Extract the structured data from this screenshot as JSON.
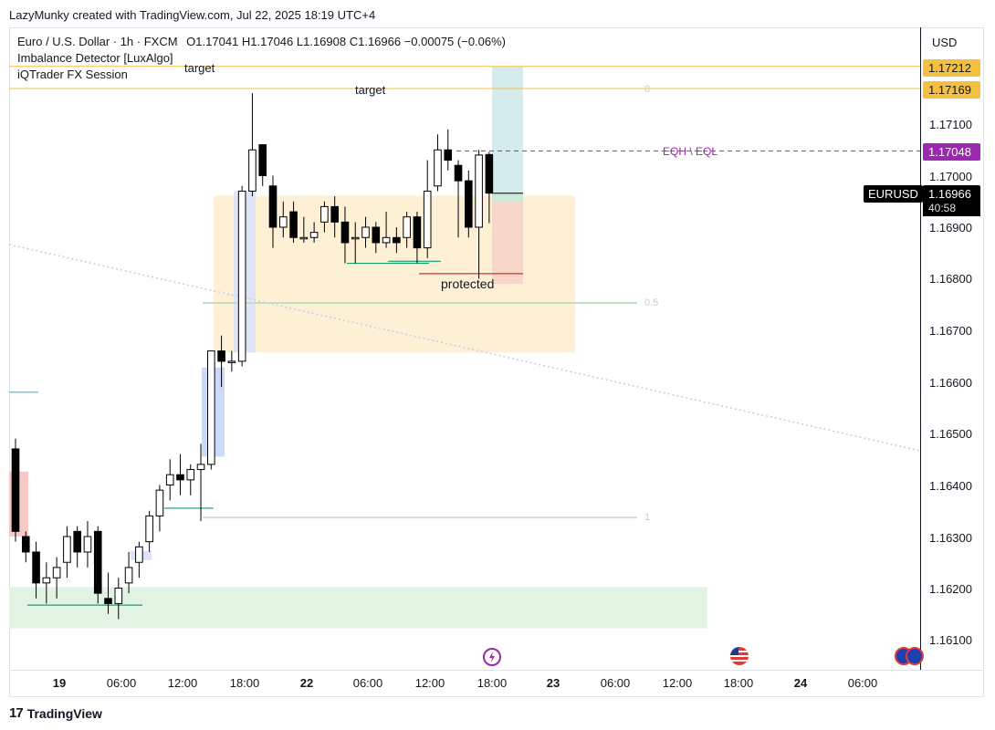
{
  "header": {
    "credit": "LazyMunky created with TradingView.com, Jul 22, 2025 18:19 UTC+4"
  },
  "legend": {
    "symbol": "Euro / U.S. Dollar · 1h · FXCM",
    "ohlc": "O1.17041  H1.17046  L1.16908  C1.16966  −0.00075 (−0.06%)",
    "indicators": [
      "Imbalance Detector [LuxAlgo]",
      "iQTrader FX Session"
    ]
  },
  "price_axis": {
    "currency": "USD",
    "ticks": [
      "1.17100",
      "1.17000",
      "1.16900",
      "1.16800",
      "1.16700",
      "1.16600",
      "1.16500",
      "1.16400",
      "1.16300",
      "1.16200",
      "1.16100"
    ],
    "badges": [
      {
        "label": "1.17212",
        "color": "#f5c040"
      },
      {
        "label": "1.17169",
        "color": "#f5c040"
      },
      {
        "label": "1.17048",
        "color": "#9c27b0"
      }
    ],
    "last_price": {
      "symbol": "EURUSD",
      "price": "1.16966",
      "countdown": "40:58"
    }
  },
  "time_axis": [
    {
      "label": "19",
      "bold": true
    },
    {
      "label": "06:00",
      "bold": false
    },
    {
      "label": "12:00",
      "bold": false
    },
    {
      "label": "18:00",
      "bold": false
    },
    {
      "label": "22",
      "bold": true
    },
    {
      "label": "06:00",
      "bold": false
    },
    {
      "label": "12:00",
      "bold": false
    },
    {
      "label": "18:00",
      "bold": false
    },
    {
      "label": "23",
      "bold": true
    },
    {
      "label": "06:00",
      "bold": false
    },
    {
      "label": "12:00",
      "bold": false
    },
    {
      "label": "18:00",
      "bold": false
    },
    {
      "label": "24",
      "bold": true
    },
    {
      "label": "06:00",
      "bold": false
    }
  ],
  "annotations": {
    "target_upper": "target",
    "target_lower": "target",
    "protected": "protected",
    "eqh_eql": "EQH \\ EQL",
    "fib_0": "0",
    "fib_05": "0.5",
    "fib_1": "1"
  },
  "footer": {
    "brand": "TradingView",
    "mark": "17"
  },
  "colors": {
    "bull_body": "#ffffff",
    "bear_body": "#000000",
    "wick": "#000000",
    "target_line": "#f5c040",
    "eqh_line": "#9c27b0",
    "supply_zone": "#fdf0d5",
    "demand_zone": "#e3f3e3",
    "trend_line": "#c5cbe6"
  },
  "chart_data": {
    "type": "candlestick",
    "title": "Euro / U.S. Dollar · 1h · FXCM",
    "ylim": [
      1.1605,
      1.1725
    ],
    "candles": [
      {
        "o": 1.1647,
        "h": 1.1649,
        "l": 1.1629,
        "c": 1.1631
      },
      {
        "o": 1.163,
        "h": 1.1631,
        "l": 1.1625,
        "c": 1.1627
      },
      {
        "o": 1.1627,
        "h": 1.1629,
        "l": 1.1618,
        "c": 1.1621
      },
      {
        "o": 1.1621,
        "h": 1.1625,
        "l": 1.1617,
        "c": 1.1622
      },
      {
        "o": 1.1622,
        "h": 1.1626,
        "l": 1.1618,
        "c": 1.1624
      },
      {
        "o": 1.1625,
        "h": 1.1632,
        "l": 1.1622,
        "c": 1.163
      },
      {
        "o": 1.1631,
        "h": 1.1632,
        "l": 1.1624,
        "c": 1.1627
      },
      {
        "o": 1.1627,
        "h": 1.1633,
        "l": 1.1624,
        "c": 1.163
      },
      {
        "o": 1.1631,
        "h": 1.1632,
        "l": 1.1617,
        "c": 1.1619
      },
      {
        "o": 1.1618,
        "h": 1.1623,
        "l": 1.1615,
        "c": 1.1617
      },
      {
        "o": 1.1617,
        "h": 1.1622,
        "l": 1.1614,
        "c": 1.162
      },
      {
        "o": 1.1621,
        "h": 1.1627,
        "l": 1.1619,
        "c": 1.1624
      },
      {
        "o": 1.1625,
        "h": 1.1629,
        "l": 1.1622,
        "c": 1.1628
      },
      {
        "o": 1.1629,
        "h": 1.1635,
        "l": 1.1627,
        "c": 1.1634
      },
      {
        "o": 1.1634,
        "h": 1.164,
        "l": 1.1631,
        "c": 1.1639
      },
      {
        "o": 1.164,
        "h": 1.1645,
        "l": 1.1637,
        "c": 1.1642
      },
      {
        "o": 1.1642,
        "h": 1.1646,
        "l": 1.1638,
        "c": 1.1641
      },
      {
        "o": 1.1641,
        "h": 1.1644,
        "l": 1.1638,
        "c": 1.1643
      },
      {
        "o": 1.1643,
        "h": 1.1648,
        "l": 1.1633,
        "c": 1.1644
      },
      {
        "o": 1.1644,
        "h": 1.1666,
        "l": 1.1643,
        "c": 1.1666
      },
      {
        "o": 1.1666,
        "h": 1.1669,
        "l": 1.1659,
        "c": 1.1664
      },
      {
        "o": 1.1664,
        "h": 1.1666,
        "l": 1.1662,
        "c": 1.1664
      },
      {
        "o": 1.1664,
        "h": 1.1698,
        "l": 1.1663,
        "c": 1.1697
      },
      {
        "o": 1.1697,
        "h": 1.1716,
        "l": 1.1696,
        "c": 1.1705
      },
      {
        "o": 1.1706,
        "h": 1.1706,
        "l": 1.1698,
        "c": 1.17
      },
      {
        "o": 1.1698,
        "h": 1.17,
        "l": 1.1686,
        "c": 1.169
      },
      {
        "o": 1.169,
        "h": 1.1695,
        "l": 1.1688,
        "c": 1.1692
      },
      {
        "o": 1.1693,
        "h": 1.1695,
        "l": 1.1687,
        "c": 1.1688
      },
      {
        "o": 1.1688,
        "h": 1.1692,
        "l": 1.1687,
        "c": 1.1688
      },
      {
        "o": 1.1688,
        "h": 1.1691,
        "l": 1.1687,
        "c": 1.1689
      },
      {
        "o": 1.1691,
        "h": 1.1695,
        "l": 1.1689,
        "c": 1.1694
      },
      {
        "o": 1.1694,
        "h": 1.1696,
        "l": 1.1688,
        "c": 1.1691
      },
      {
        "o": 1.1691,
        "h": 1.1694,
        "l": 1.1683,
        "c": 1.1687
      },
      {
        "o": 1.1688,
        "h": 1.1691,
        "l": 1.1683,
        "c": 1.1688
      },
      {
        "o": 1.1688,
        "h": 1.1692,
        "l": 1.1686,
        "c": 1.169
      },
      {
        "o": 1.169,
        "h": 1.1691,
        "l": 1.1685,
        "c": 1.1687
      },
      {
        "o": 1.1687,
        "h": 1.1693,
        "l": 1.1686,
        "c": 1.1688
      },
      {
        "o": 1.1688,
        "h": 1.169,
        "l": 1.1685,
        "c": 1.1687
      },
      {
        "o": 1.1688,
        "h": 1.1693,
        "l": 1.1686,
        "c": 1.1692
      },
      {
        "o": 1.1692,
        "h": 1.1693,
        "l": 1.1683,
        "c": 1.1686
      },
      {
        "o": 1.1686,
        "h": 1.1703,
        "l": 1.1684,
        "c": 1.1697
      },
      {
        "o": 1.1698,
        "h": 1.1708,
        "l": 1.1697,
        "c": 1.1705
      },
      {
        "o": 1.1705,
        "h": 1.1709,
        "l": 1.1701,
        "c": 1.1703
      },
      {
        "o": 1.1702,
        "h": 1.1703,
        "l": 1.1688,
        "c": 1.1699
      },
      {
        "o": 1.1699,
        "h": 1.1701,
        "l": 1.1688,
        "c": 1.169
      },
      {
        "o": 1.169,
        "h": 1.1705,
        "l": 1.168,
        "c": 1.1704
      },
      {
        "o": 1.17041,
        "h": 1.17046,
        "l": 1.16908,
        "c": 1.16966
      }
    ],
    "levels": [
      {
        "name": "target",
        "price": 1.17212
      },
      {
        "name": "target",
        "price": 1.17169
      },
      {
        "name": "EQH \\ EQL",
        "price": 1.17048
      }
    ],
    "fib": {
      "0": 1.17169,
      "0.5": 1.16753,
      "1": 1.16337
    },
    "zones": {
      "supply": [
        1.16657,
        1.16961
      ],
      "demand": [
        1.16122,
        1.16202
      ]
    },
    "grid": false,
    "legend": "top-left"
  }
}
